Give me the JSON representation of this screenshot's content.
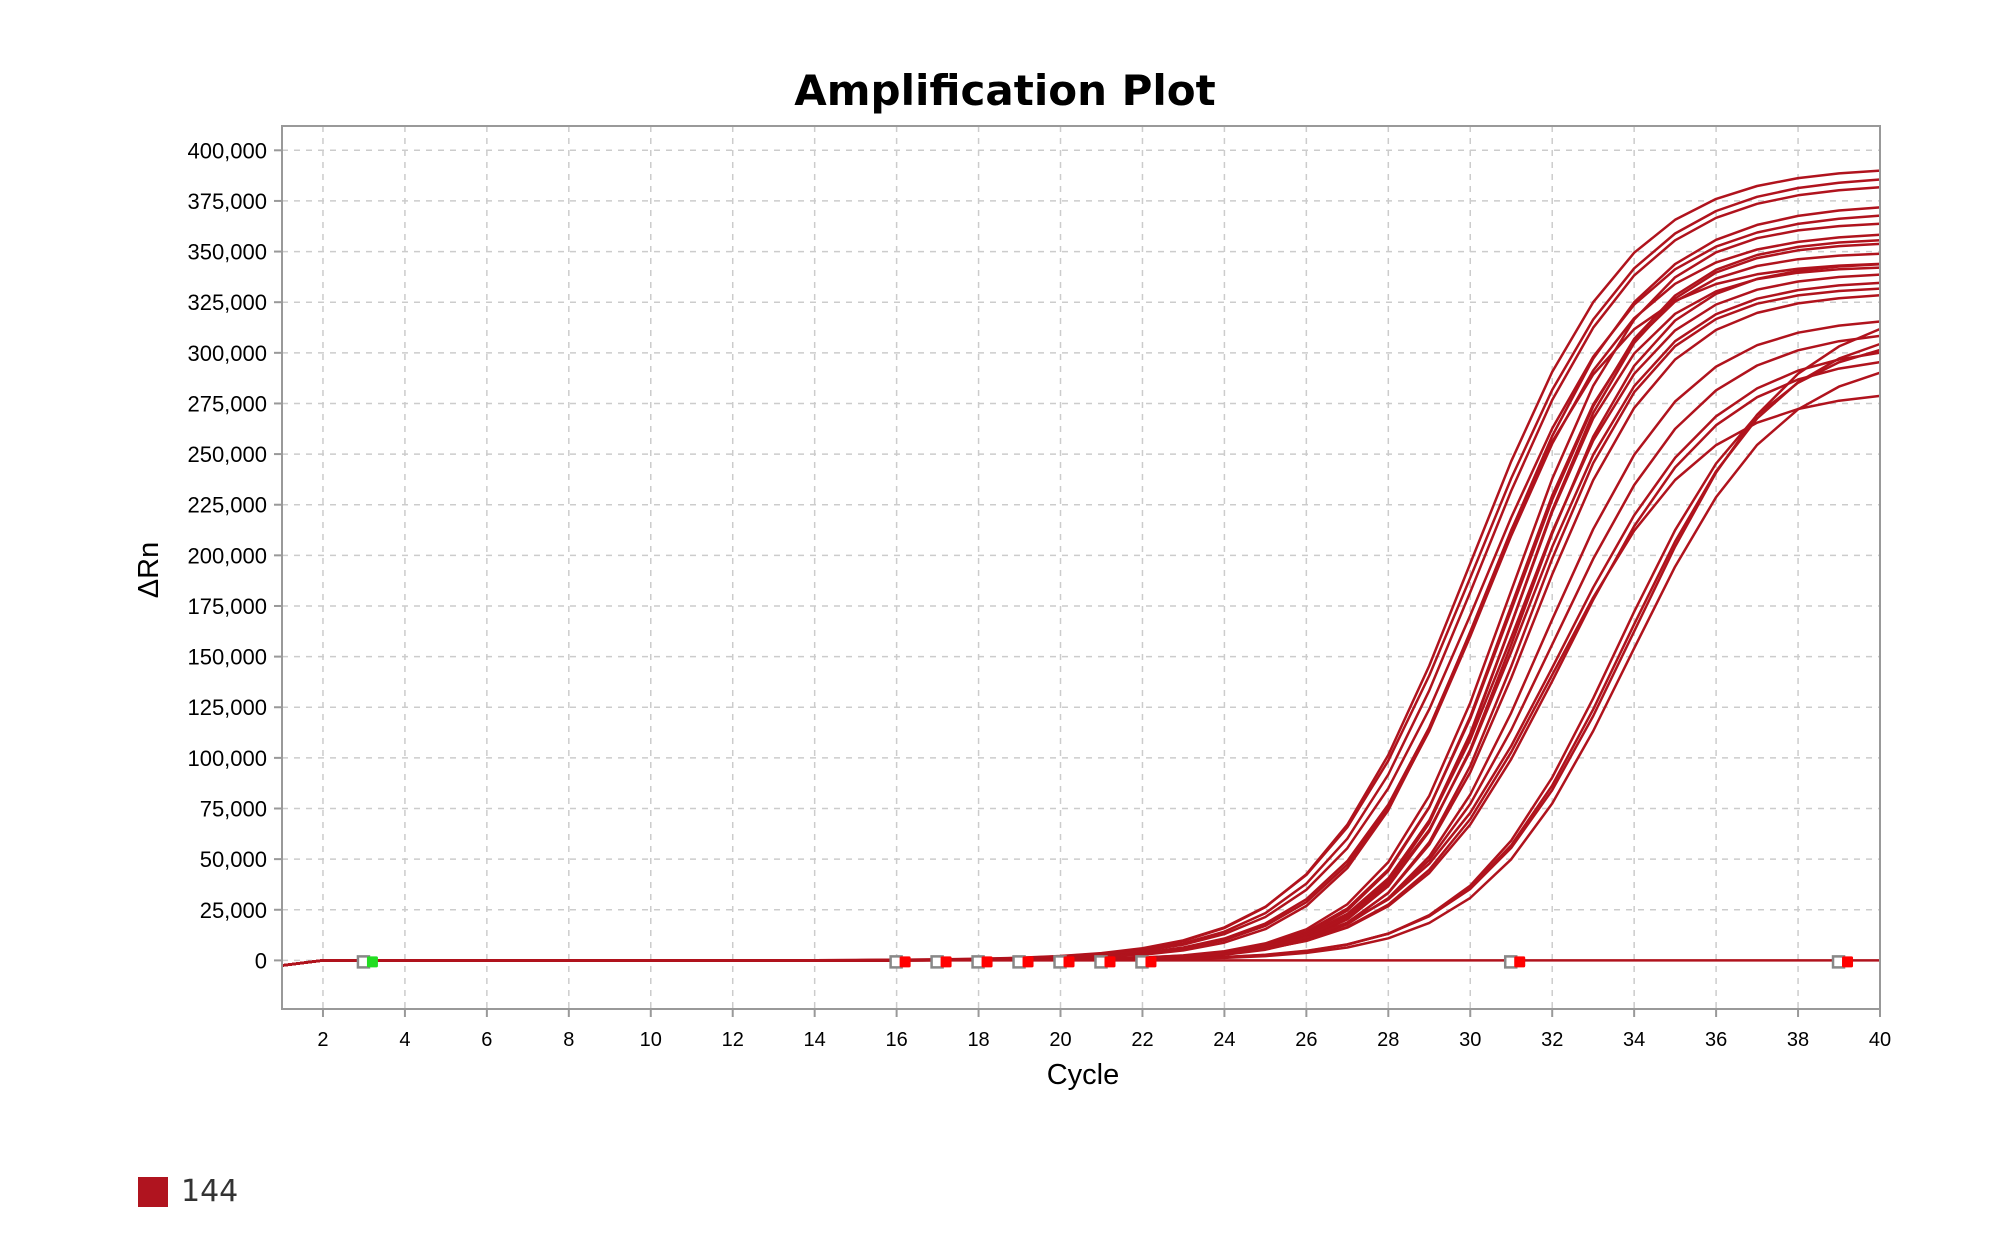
{
  "chart_data": {
    "type": "line",
    "title": "Amplification Plot",
    "xlabel": "Cycle",
    "ylabel": "ΔRn",
    "xlim": [
      1,
      40
    ],
    "ylim": [
      -24000,
      412000
    ],
    "xticks": [
      2,
      4,
      6,
      8,
      10,
      12,
      14,
      16,
      18,
      20,
      22,
      24,
      26,
      28,
      30,
      32,
      34,
      36,
      38,
      40
    ],
    "yticks": [
      0,
      25000,
      50000,
      75000,
      100000,
      125000,
      150000,
      175000,
      200000,
      225000,
      250000,
      275000,
      300000,
      325000,
      350000,
      375000,
      400000
    ],
    "ytick_labels": [
      "0",
      "25,000",
      "50,000",
      "75,000",
      "100,000",
      "125,000",
      "150,000",
      "175,000",
      "200,000",
      "225,000",
      "250,000",
      "275,000",
      "300,000",
      "325,000",
      "350,000",
      "375,000",
      "400,000"
    ],
    "grid": true,
    "line_color": "#b0131d",
    "curve_model": "logistic: plateau / (1 + exp(-(cycle - midpoint) / slope))",
    "series": [
      {
        "plateau": 392000,
        "midpoint": 30.0,
        "slope": 1.9
      },
      {
        "plateau": 388000,
        "midpoint": 30.1,
        "slope": 1.95
      },
      {
        "plateau": 384000,
        "midpoint": 30.2,
        "slope": 1.9
      },
      {
        "plateau": 374000,
        "midpoint": 30.5,
        "slope": 1.85
      },
      {
        "plateau": 370000,
        "midpoint": 30.3,
        "slope": 1.9
      },
      {
        "plateau": 360000,
        "midpoint": 30.4,
        "slope": 1.8
      },
      {
        "plateau": 345000,
        "midpoint": 30.2,
        "slope": 1.7
      },
      {
        "plateau": 365000,
        "midpoint": 31.0,
        "slope": 1.6
      },
      {
        "plateau": 357000,
        "midpoint": 31.1,
        "slope": 1.6
      },
      {
        "plateau": 355000,
        "midpoint": 31.2,
        "slope": 1.55
      },
      {
        "plateau": 350000,
        "midpoint": 31.0,
        "slope": 1.55
      },
      {
        "plateau": 345000,
        "midpoint": 31.3,
        "slope": 1.55
      },
      {
        "plateau": 343000,
        "midpoint": 31.1,
        "slope": 1.5
      },
      {
        "plateau": 340000,
        "midpoint": 31.2,
        "slope": 1.6
      },
      {
        "plateau": 336000,
        "midpoint": 31.3,
        "slope": 1.6
      },
      {
        "plateau": 333000,
        "midpoint": 31.4,
        "slope": 1.55
      },
      {
        "plateau": 330000,
        "midpoint": 31.5,
        "slope": 1.6
      },
      {
        "plateau": 318000,
        "midpoint": 31.8,
        "slope": 1.7
      },
      {
        "plateau": 312000,
        "midpoint": 32.0,
        "slope": 1.8
      },
      {
        "plateau": 305000,
        "midpoint": 32.2,
        "slope": 1.9
      },
      {
        "plateau": 300000,
        "midpoint": 32.3,
        "slope": 1.85
      },
      {
        "plateau": 282000,
        "midpoint": 32.0,
        "slope": 1.8
      },
      {
        "plateau": 325000,
        "midpoint": 34.0,
        "slope": 1.9
      },
      {
        "plateau": 315000,
        "midpoint": 33.8,
        "slope": 1.85
      },
      {
        "plateau": 310000,
        "midpoint": 33.6,
        "slope": 1.8
      },
      {
        "plateau": 300000,
        "midpoint": 33.9,
        "slope": 1.8
      },
      {
        "plateau": 0,
        "midpoint": 30.0,
        "slope": 2.0
      }
    ],
    "markers": [
      {
        "cycle": 3,
        "color": "#22dd22"
      },
      {
        "cycle": 16,
        "color": "#ff0000"
      },
      {
        "cycle": 17,
        "color": "#ff0000"
      },
      {
        "cycle": 18,
        "color": "#ff0000"
      },
      {
        "cycle": 19,
        "color": "#ff0000"
      },
      {
        "cycle": 20,
        "color": "#ff0000"
      },
      {
        "cycle": 21,
        "color": "#ff0000"
      },
      {
        "cycle": 22,
        "color": "#ff0000"
      },
      {
        "cycle": 31,
        "color": "#ff0000"
      },
      {
        "cycle": 39,
        "color": "#ff0000"
      }
    ]
  },
  "legend": {
    "label": "144",
    "color": "#b0141f"
  }
}
